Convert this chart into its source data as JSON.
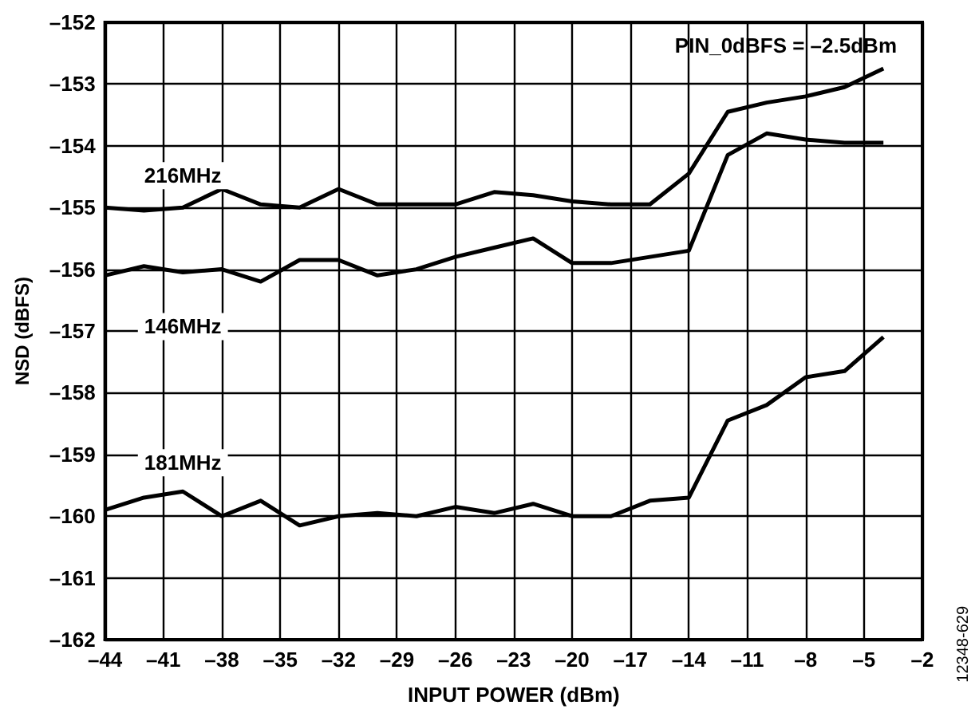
{
  "chart_data": {
    "type": "line",
    "xlabel": "INPUT POWER (dBm)",
    "ylabel": "NSD (dBFS)",
    "x": [
      -44,
      -42,
      -40,
      -38,
      -36,
      -34,
      -32,
      -30,
      -28,
      -26,
      -24,
      -22,
      -20,
      -18,
      -16,
      -14,
      -12,
      -10,
      -8,
      -6,
      -4
    ],
    "series": [
      {
        "name": "216MHz",
        "color": "#000000",
        "values": [
          -155.0,
          -155.05,
          -155.0,
          -154.7,
          -154.95,
          -155.0,
          -154.7,
          -154.95,
          -154.95,
          -154.95,
          -154.75,
          -154.8,
          -154.9,
          -154.95,
          -154.95,
          -154.45,
          -153.45,
          -153.3,
          -153.2,
          -153.05,
          -152.75
        ]
      },
      {
        "name": "146MHz",
        "color": "#000000",
        "values": [
          -156.1,
          -155.95,
          -156.05,
          -156.0,
          -156.2,
          -155.85,
          -155.85,
          -156.1,
          -156.0,
          -155.8,
          -155.65,
          -155.5,
          -155.9,
          -155.9,
          -155.8,
          -155.7,
          -154.15,
          -153.8,
          -153.9,
          -153.95,
          -153.95
        ]
      },
      {
        "name": "181MHz",
        "color": "#000000",
        "values": [
          -159.9,
          -159.7,
          -159.6,
          -160.0,
          -159.75,
          -160.15,
          -160.0,
          -159.95,
          -160.0,
          -159.85,
          -159.95,
          -159.8,
          -160.0,
          -160.0,
          -159.75,
          -159.7,
          -158.45,
          -158.2,
          -157.75,
          -157.65,
          -157.1
        ]
      }
    ],
    "xlim": [
      -44,
      -2
    ],
    "xticks": [
      {
        "value": -44,
        "label": "–44"
      },
      {
        "value": -41,
        "label": "–41"
      },
      {
        "value": -38,
        "label": "–38"
      },
      {
        "value": -35,
        "label": "–35"
      },
      {
        "value": -32,
        "label": "–32"
      },
      {
        "value": -29,
        "label": "–29"
      },
      {
        "value": -26,
        "label": "–26"
      },
      {
        "value": -23,
        "label": "–23"
      },
      {
        "value": -20,
        "label": "–20"
      },
      {
        "value": -17,
        "label": "–17"
      },
      {
        "value": -14,
        "label": "–14"
      },
      {
        "value": -11,
        "label": "–11"
      },
      {
        "value": -8,
        "label": "–8"
      },
      {
        "value": -5,
        "label": "–5"
      },
      {
        "value": -2,
        "label": "–2"
      }
    ],
    "ylim": [
      -162,
      -152
    ],
    "yticks": [
      {
        "value": -162,
        "label": "–162"
      },
      {
        "value": -161,
        "label": "–161"
      },
      {
        "value": -160,
        "label": "–160"
      },
      {
        "value": -159,
        "label": "–159"
      },
      {
        "value": -158,
        "label": "–158"
      },
      {
        "value": -157,
        "label": "–157"
      },
      {
        "value": -156,
        "label": "–156"
      },
      {
        "value": -155,
        "label": "–155"
      },
      {
        "value": -154,
        "label": "–154"
      },
      {
        "value": -153,
        "label": "–153"
      },
      {
        "value": -152,
        "label": "–152"
      }
    ],
    "grid": true,
    "legend": false,
    "marker": "none",
    "line_style": "solid",
    "annotations": [
      "PIN_0dBFS = –2.5dBm",
      "12348-629"
    ]
  }
}
